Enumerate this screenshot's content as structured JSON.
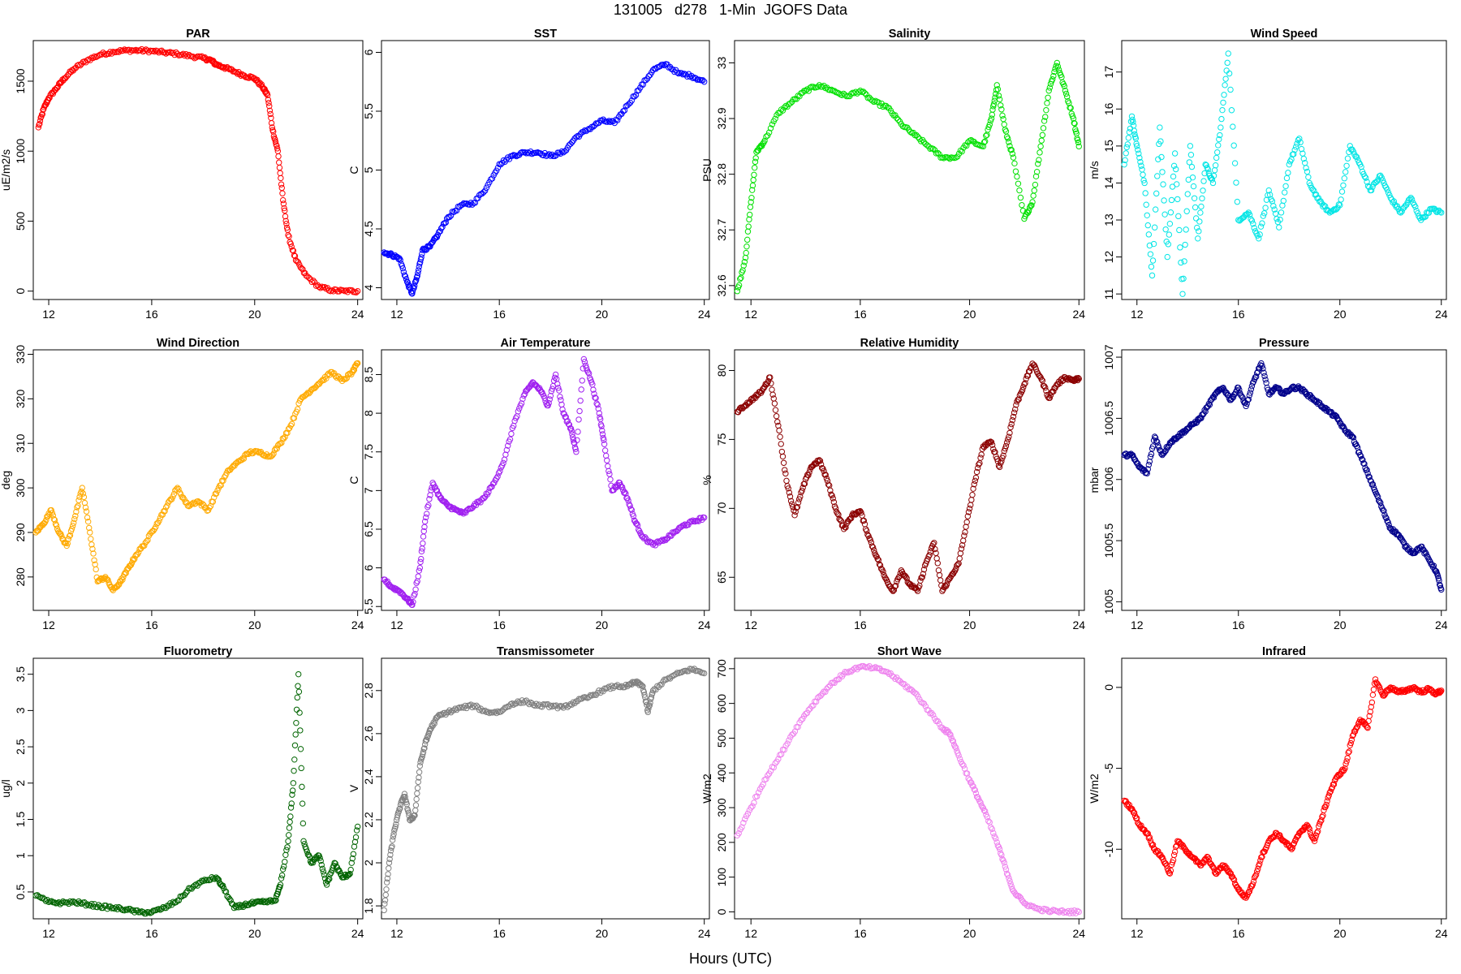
{
  "title": "131005   d278   1-Min  JGOFS Data",
  "xlabel": "Hours (UTC)",
  "chart_data": [
    {
      "type": "scatter",
      "title": "PAR",
      "ylabel": "uE/m2/s",
      "color": "#ff0000",
      "xlim": [
        11.4,
        24.2
      ],
      "ylim": [
        -60,
        1790
      ],
      "xticks": [
        12,
        16,
        20,
        24
      ],
      "yticks": [
        0,
        500,
        1000,
        1500
      ],
      "x": [
        11.6,
        11.8,
        12.0,
        12.3,
        12.6,
        13.0,
        13.5,
        14.0,
        14.5,
        15.0,
        15.5,
        16.0,
        16.5,
        17.0,
        17.5,
        18.0,
        18.3,
        18.5,
        18.8,
        19.2,
        19.6,
        20.0,
        20.3,
        20.5,
        20.7,
        20.9,
        21.1,
        21.3,
        21.6,
        22.0,
        22.5,
        23.0,
        23.5,
        24.0
      ],
      "y": [
        1170,
        1300,
        1380,
        1450,
        1520,
        1590,
        1650,
        1690,
        1710,
        1720,
        1720,
        1715,
        1705,
        1695,
        1680,
        1665,
        1650,
        1620,
        1600,
        1570,
        1540,
        1520,
        1460,
        1400,
        1150,
        1000,
        650,
        400,
        220,
        110,
        30,
        5,
        0,
        0
      ]
    },
    {
      "type": "scatter",
      "title": "SST",
      "ylabel": "C",
      "color": "#0000ff",
      "xlim": [
        11.4,
        24.2
      ],
      "ylim": [
        3.9,
        6.1
      ],
      "xticks": [
        12,
        16,
        20,
        24
      ],
      "yticks": [
        4.0,
        4.5,
        5.0,
        5.5,
        6.0
      ],
      "x": [
        11.5,
        11.8,
        12.1,
        12.4,
        12.6,
        12.8,
        13.0,
        13.3,
        13.6,
        14.0,
        14.5,
        15.0,
        15.5,
        16.0,
        16.5,
        17.0,
        17.5,
        18.0,
        18.5,
        19.0,
        19.5,
        20.0,
        20.5,
        21.0,
        21.5,
        22.0,
        22.5,
        23.0,
        23.5,
        24.0
      ],
      "y": [
        4.3,
        4.28,
        4.25,
        4.05,
        3.95,
        4.1,
        4.32,
        4.35,
        4.45,
        4.6,
        4.7,
        4.72,
        4.85,
        5.05,
        5.12,
        5.15,
        5.15,
        5.12,
        5.15,
        5.28,
        5.35,
        5.42,
        5.4,
        5.55,
        5.7,
        5.85,
        5.9,
        5.82,
        5.8,
        5.75
      ]
    },
    {
      "type": "scatter",
      "title": "Salinity",
      "ylabel": "PSU",
      "color": "#00e000",
      "xlim": [
        11.4,
        24.2
      ],
      "ylim": [
        32.575,
        33.04
      ],
      "xticks": [
        12,
        16,
        20,
        24
      ],
      "yticks": [
        32.6,
        32.7,
        32.8,
        32.9,
        33.0
      ],
      "x": [
        11.5,
        11.8,
        12.0,
        12.2,
        12.5,
        13.0,
        13.5,
        14.0,
        14.5,
        15.0,
        15.5,
        16.0,
        16.5,
        17.0,
        17.5,
        18.0,
        18.5,
        19.0,
        19.5,
        20.0,
        20.5,
        20.8,
        21.0,
        21.3,
        21.6,
        22.0,
        22.3,
        22.6,
        22.9,
        23.2,
        23.5,
        23.8,
        24.0
      ],
      "y": [
        32.59,
        32.65,
        32.75,
        32.84,
        32.86,
        32.91,
        32.93,
        32.95,
        32.96,
        32.95,
        32.94,
        32.95,
        32.93,
        32.92,
        32.89,
        32.87,
        32.85,
        32.83,
        32.83,
        32.86,
        32.85,
        32.9,
        32.96,
        32.88,
        32.83,
        32.72,
        32.75,
        32.85,
        32.95,
        33.0,
        32.95,
        32.9,
        32.85
      ]
    },
    {
      "type": "scatter",
      "title": "Wind Speed",
      "ylabel": "m/s",
      "color": "#00e5e5",
      "xlim": [
        11.4,
        24.2
      ],
      "ylim": [
        10.85,
        17.85
      ],
      "xticks": [
        12,
        16,
        20,
        24
      ],
      "yticks": [
        11,
        12,
        13,
        14,
        15,
        16,
        17
      ],
      "x": [
        11.5,
        11.8,
        12.0,
        12.3,
        12.6,
        12.9,
        13.2,
        13.5,
        13.8,
        14.1,
        14.4,
        14.7,
        15.0,
        15.3,
        15.6,
        16.0,
        16.4,
        16.8,
        17.2,
        17.6,
        18.0,
        18.4,
        18.8,
        19.2,
        19.6,
        20.0,
        20.4,
        20.8,
        21.2,
        21.6,
        22.0,
        22.4,
        22.8,
        23.2,
        23.6,
        24.0
      ],
      "y": [
        14.5,
        15.8,
        15.0,
        14.0,
        11.5,
        15.5,
        12.0,
        14.8,
        11.0,
        15.0,
        12.5,
        14.5,
        14.0,
        15.5,
        17.5,
        13.0,
        13.2,
        12.5,
        13.8,
        12.8,
        14.5,
        15.2,
        14.0,
        13.5,
        13.2,
        13.4,
        15.0,
        14.5,
        13.8,
        14.2,
        13.6,
        13.2,
        13.6,
        13.0,
        13.3,
        13.2
      ]
    },
    {
      "type": "scatter",
      "title": "Wind Direction",
      "ylabel": "deg",
      "color": "#ffaa00",
      "xlim": [
        11.4,
        24.2
      ],
      "ylim": [
        272.5,
        331
      ],
      "xticks": [
        12,
        16,
        20,
        24
      ],
      "yticks": [
        280,
        290,
        300,
        310,
        320,
        330
      ],
      "x": [
        11.5,
        11.8,
        12.1,
        12.4,
        12.7,
        13.0,
        13.3,
        13.6,
        13.9,
        14.2,
        14.5,
        14.8,
        15.1,
        15.4,
        15.8,
        16.2,
        16.6,
        17.0,
        17.4,
        17.8,
        18.2,
        18.6,
        19.0,
        19.4,
        19.8,
        20.2,
        20.6,
        21.0,
        21.4,
        21.8,
        22.2,
        22.6,
        23.0,
        23.4,
        23.8,
        24.0
      ],
      "y": [
        290,
        292,
        295,
        290,
        287,
        293,
        300,
        290,
        279,
        280,
        277,
        279,
        282,
        285,
        288,
        292,
        296,
        300,
        296,
        297,
        295,
        300,
        304,
        306,
        308,
        308,
        307,
        310,
        314,
        320,
        322,
        324,
        326,
        324,
        326,
        328
      ]
    },
    {
      "type": "scatter",
      "title": "Air Temperature",
      "ylabel": "C",
      "color": "#a020f0",
      "xlim": [
        11.4,
        24.2
      ],
      "ylim": [
        5.45,
        8.82
      ],
      "xticks": [
        12,
        16,
        20,
        24
      ],
      "yticks": [
        5.5,
        6.0,
        6.5,
        7.0,
        7.5,
        8.0,
        8.5
      ],
      "x": [
        11.5,
        11.8,
        12.1,
        12.4,
        12.6,
        12.9,
        13.1,
        13.4,
        13.7,
        14.0,
        14.3,
        14.6,
        15.0,
        15.4,
        15.8,
        16.2,
        16.6,
        17.0,
        17.3,
        17.6,
        17.9,
        18.2,
        18.5,
        18.8,
        19.0,
        19.3,
        19.6,
        19.9,
        20.1,
        20.4,
        20.7,
        21.0,
        21.3,
        21.6,
        22.0,
        22.4,
        22.8,
        23.2,
        23.6,
        24.0
      ],
      "y": [
        5.85,
        5.75,
        5.7,
        5.6,
        5.52,
        6.0,
        6.6,
        7.1,
        6.9,
        6.8,
        6.75,
        6.7,
        6.8,
        6.9,
        7.1,
        7.4,
        7.9,
        8.25,
        8.4,
        8.3,
        8.1,
        8.5,
        8.0,
        7.8,
        7.5,
        8.7,
        8.4,
        8.0,
        7.6,
        7.0,
        7.1,
        6.9,
        6.6,
        6.4,
        6.3,
        6.35,
        6.45,
        6.55,
        6.6,
        6.65
      ]
    },
    {
      "type": "scatter",
      "title": "Relative Humidity",
      "ylabel": "%",
      "color": "#8b0000",
      "xlim": [
        11.4,
        24.2
      ],
      "ylim": [
        62.6,
        81.5
      ],
      "xticks": [
        12,
        16,
        20,
        24
      ],
      "yticks": [
        65,
        70,
        75,
        80
      ],
      "x": [
        11.5,
        11.8,
        12.1,
        12.4,
        12.7,
        13.0,
        13.3,
        13.6,
        13.9,
        14.2,
        14.5,
        14.8,
        15.1,
        15.4,
        15.7,
        16.0,
        16.3,
        16.6,
        16.9,
        17.2,
        17.5,
        17.8,
        18.1,
        18.4,
        18.7,
        19.0,
        19.3,
        19.6,
        19.9,
        20.2,
        20.5,
        20.8,
        21.1,
        21.4,
        21.7,
        22.0,
        22.3,
        22.6,
        22.9,
        23.2,
        23.5,
        23.8,
        24.0
      ],
      "y": [
        77,
        77.5,
        78,
        78.5,
        79.5,
        76,
        72,
        69.5,
        71.5,
        73,
        73.5,
        72,
        70,
        68.5,
        69.5,
        69.8,
        68,
        66.5,
        65,
        64,
        65.5,
        64.5,
        64,
        66,
        67.5,
        64,
        65,
        66,
        69,
        72,
        74.5,
        74.8,
        73,
        75,
        77.5,
        79,
        80.5,
        79.5,
        78,
        79,
        79.5,
        79.3,
        79.4
      ]
    },
    {
      "type": "scatter",
      "title": "Pressure",
      "ylabel": "mbar",
      "color": "#00008b",
      "xlim": [
        11.4,
        24.2
      ],
      "ylim": [
        1004.93,
        1007.06
      ],
      "xticks": [
        12,
        16,
        20,
        24
      ],
      "yticks": [
        1005.0,
        1005.5,
        1006.0,
        1006.5,
        1007.0
      ],
      "x": [
        11.5,
        11.8,
        12.1,
        12.4,
        12.7,
        13.0,
        13.3,
        13.6,
        13.9,
        14.2,
        14.5,
        14.8,
        15.1,
        15.4,
        15.7,
        16.0,
        16.3,
        16.6,
        16.9,
        17.2,
        17.5,
        17.8,
        18.1,
        18.4,
        18.7,
        19.0,
        19.3,
        19.6,
        19.9,
        20.2,
        20.5,
        20.8,
        21.1,
        21.4,
        21.7,
        22.0,
        22.3,
        22.6,
        22.9,
        23.2,
        23.5,
        23.8,
        24.0
      ],
      "y": [
        1006.2,
        1006.2,
        1006.1,
        1006.05,
        1006.35,
        1006.2,
        1006.3,
        1006.35,
        1006.4,
        1006.45,
        1006.5,
        1006.6,
        1006.7,
        1006.75,
        1006.65,
        1006.75,
        1006.6,
        1006.8,
        1006.95,
        1006.7,
        1006.75,
        1006.7,
        1006.75,
        1006.75,
        1006.7,
        1006.65,
        1006.6,
        1006.55,
        1006.5,
        1006.4,
        1006.35,
        1006.2,
        1006.05,
        1005.9,
        1005.75,
        1005.6,
        1005.55,
        1005.45,
        1005.4,
        1005.45,
        1005.35,
        1005.25,
        1005.1
      ]
    },
    {
      "type": "scatter",
      "title": "Fluorometry",
      "ylabel": "ug/l",
      "color": "#006400",
      "xlim": [
        11.4,
        24.2
      ],
      "ylim": [
        0.13,
        3.72
      ],
      "xticks": [
        12,
        16,
        20,
        24
      ],
      "yticks": [
        0.5,
        1.0,
        1.5,
        2.0,
        2.5,
        3.0,
        3.5
      ],
      "x": [
        11.5,
        12.0,
        12.5,
        13.0,
        13.5,
        14.0,
        14.5,
        15.0,
        15.5,
        16.0,
        16.5,
        17.0,
        17.5,
        18.0,
        18.5,
        18.8,
        19.2,
        19.6,
        20.0,
        20.4,
        20.8,
        21.0,
        21.3,
        21.5,
        21.7,
        21.9,
        22.2,
        22.5,
        22.8,
        23.1,
        23.4,
        23.7,
        24.0
      ],
      "y": [
        0.45,
        0.36,
        0.35,
        0.36,
        0.33,
        0.3,
        0.28,
        0.26,
        0.22,
        0.22,
        0.28,
        0.38,
        0.55,
        0.65,
        0.7,
        0.55,
        0.28,
        0.32,
        0.35,
        0.36,
        0.38,
        0.6,
        1.2,
        2.0,
        3.5,
        1.2,
        0.9,
        1.0,
        0.6,
        0.9,
        0.7,
        0.75,
        1.4
      ]
    },
    {
      "type": "scatter",
      "title": "Transmissometer",
      "ylabel": "V",
      "color": "#808080",
      "xlim": [
        11.4,
        24.2
      ],
      "ylim": [
        1.74,
        2.95
      ],
      "xticks": [
        12,
        16,
        20,
        24
      ],
      "yticks": [
        1.8,
        2.0,
        2.2,
        2.4,
        2.6,
        2.8
      ],
      "x": [
        11.5,
        11.7,
        11.9,
        12.1,
        12.3,
        12.5,
        12.7,
        12.9,
        13.1,
        13.3,
        13.6,
        14.0,
        14.5,
        15.0,
        15.5,
        16.0,
        16.5,
        17.0,
        17.5,
        18.0,
        18.5,
        19.0,
        19.5,
        20.0,
        20.5,
        21.0,
        21.3,
        21.6,
        21.8,
        22.0,
        22.5,
        23.0,
        23.5,
        24.0
      ],
      "y": [
        1.78,
        2.0,
        2.15,
        2.25,
        2.32,
        2.2,
        2.22,
        2.45,
        2.55,
        2.62,
        2.68,
        2.7,
        2.72,
        2.73,
        2.7,
        2.7,
        2.74,
        2.75,
        2.73,
        2.73,
        2.72,
        2.75,
        2.77,
        2.8,
        2.82,
        2.82,
        2.84,
        2.82,
        2.7,
        2.8,
        2.85,
        2.88,
        2.9,
        2.88
      ]
    },
    {
      "type": "scatter",
      "title": "Short Wave",
      "ylabel": "W/m2",
      "color": "#ee82ee",
      "xlim": [
        11.4,
        24.2
      ],
      "ylim": [
        -20,
        730
      ],
      "xticks": [
        12,
        16,
        20,
        24
      ],
      "yticks": [
        0,
        100,
        200,
        300,
        400,
        500,
        600,
        700
      ],
      "x": [
        11.5,
        12.0,
        12.5,
        13.0,
        13.5,
        14.0,
        14.5,
        15.0,
        15.5,
        16.0,
        16.5,
        17.0,
        17.5,
        18.0,
        18.5,
        19.0,
        19.3,
        19.6,
        20.0,
        20.3,
        20.6,
        21.0,
        21.3,
        21.6,
        22.0,
        22.5,
        23.0,
        23.5,
        24.0
      ],
      "y": [
        220,
        300,
        380,
        440,
        510,
        570,
        620,
        660,
        690,
        705,
        702,
        690,
        660,
        630,
        580,
        530,
        510,
        450,
        380,
        330,
        280,
        200,
        130,
        60,
        25,
        8,
        2,
        0,
        0
      ]
    },
    {
      "type": "scatter",
      "title": "Infrared",
      "ylabel": "W/m2",
      "color": "#ff0000",
      "xlim": [
        11.4,
        24.2
      ],
      "ylim": [
        -14.3,
        1.8
      ],
      "xticks": [
        12,
        16,
        20,
        24
      ],
      "yticks": [
        -10,
        -5,
        0
      ],
      "x": [
        11.5,
        11.8,
        12.1,
        12.4,
        12.7,
        13.0,
        13.3,
        13.6,
        13.9,
        14.2,
        14.5,
        14.8,
        15.1,
        15.4,
        15.7,
        16.0,
        16.3,
        16.6,
        16.9,
        17.2,
        17.5,
        17.8,
        18.1,
        18.4,
        18.7,
        19.0,
        19.3,
        19.6,
        19.9,
        20.2,
        20.5,
        20.8,
        21.1,
        21.4,
        21.7,
        22.0,
        22.3,
        22.6,
        22.9,
        23.2,
        23.5,
        23.8,
        24.0
      ],
      "y": [
        -7,
        -7.5,
        -8.5,
        -9,
        -10,
        -10.5,
        -11.5,
        -9.5,
        -10,
        -10.5,
        -11,
        -10.5,
        -11.5,
        -11,
        -11.5,
        -12.5,
        -13,
        -12,
        -10.5,
        -9.5,
        -9,
        -9.5,
        -10,
        -9,
        -8.5,
        -9.5,
        -8,
        -6.5,
        -5.5,
        -5,
        -3,
        -2,
        -2.5,
        0.5,
        -0.5,
        0,
        -0.3,
        -0.2,
        0,
        -0.3,
        -0.1,
        -0.4,
        -0.2
      ]
    }
  ]
}
